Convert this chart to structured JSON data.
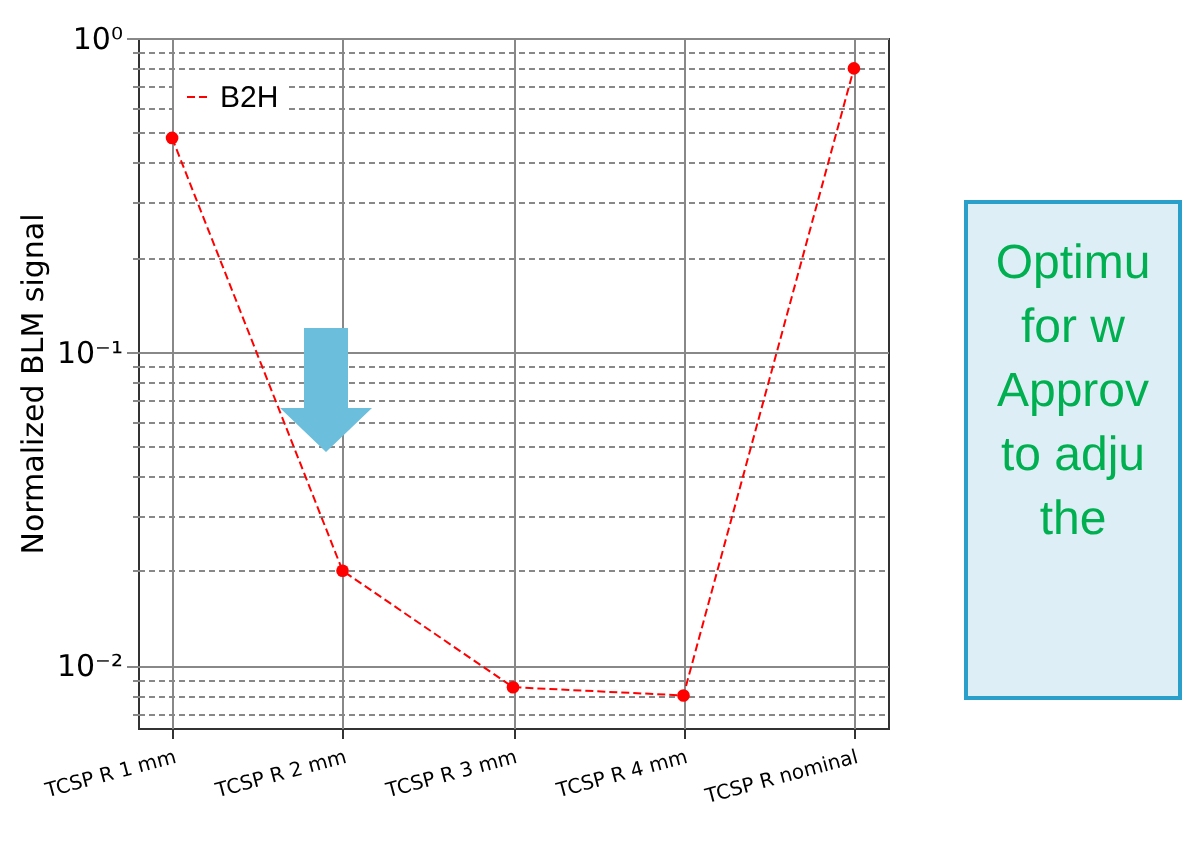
{
  "chart_data": {
    "type": "line",
    "ylabel": "Normalized BLM signal",
    "categories": [
      "TCSP R 1 mm",
      "TCSP R 2 mm",
      "TCSP R 3 mm",
      "TCSP R 4 mm",
      "TCSP R nominal"
    ],
    "series": [
      {
        "name": "B2H",
        "color": "#ff0000",
        "values": [
          0.48,
          0.02,
          0.0085,
          0.008,
          0.8
        ]
      }
    ],
    "log": "y",
    "ylim": [
      0.0063,
      1
    ],
    "yticks": [
      {
        "value": 0.007,
        "label": null
      },
      {
        "value": 0.008,
        "label": null
      },
      {
        "value": 0.009,
        "label": null
      },
      {
        "value": 0.01,
        "label": "10⁻²"
      },
      {
        "value": 0.02,
        "label": null
      },
      {
        "value": 0.03,
        "label": null
      },
      {
        "value": 0.04,
        "label": null
      },
      {
        "value": 0.05,
        "label": null
      },
      {
        "value": 0.06,
        "label": null
      },
      {
        "value": 0.07,
        "label": null
      },
      {
        "value": 0.08,
        "label": null
      },
      {
        "value": 0.09,
        "label": null
      },
      {
        "value": 0.1,
        "label": "10⁻¹"
      },
      {
        "value": 0.2,
        "label": null
      },
      {
        "value": 0.3,
        "label": null
      },
      {
        "value": 0.4,
        "label": null
      },
      {
        "value": 0.5,
        "label": null
      },
      {
        "value": 0.6,
        "label": null
      },
      {
        "value": 0.7,
        "label": null
      },
      {
        "value": 0.8,
        "label": null
      },
      {
        "value": 0.9,
        "label": null
      },
      {
        "value": 1,
        "label": "10⁰"
      }
    ],
    "grid": true,
    "legend": "top left",
    "marker": "circle",
    "line_style": "dashed",
    "annotations": [
      "Optimu",
      "for w",
      "Approv",
      "to adju",
      "the"
    ]
  }
}
